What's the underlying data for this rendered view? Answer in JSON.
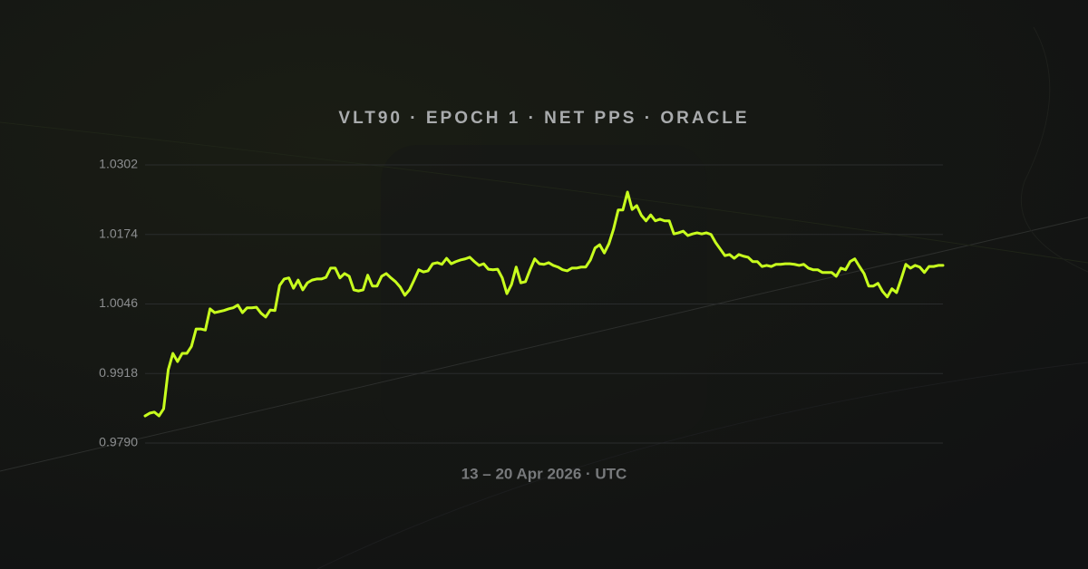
{
  "chart_data": {
    "type": "line",
    "title": "VLT90 · EPOCH 1 · NET PPS · ORACLE",
    "x_label": "13 – 20 Apr 2026 · UTC",
    "color": "#c8ff1e",
    "grid": true,
    "ylim": [
      0.979,
      1.0302
    ],
    "yticks": [
      {
        "value": 0.979,
        "label": "0.9790"
      },
      0.9918,
      1.0046,
      1.0174,
      1.0302
    ],
    "values": [
      0.984,
      0.9845,
      0.9847,
      0.984,
      0.9853,
      0.9925,
      0.9955,
      0.994,
      0.9955,
      0.9955,
      0.9968,
      1.0,
      1.0,
      0.9998,
      1.0037,
      1.003,
      1.0032,
      1.0034,
      1.0037,
      1.0039,
      1.0044,
      1.003,
      1.0039,
      1.0039,
      1.004,
      1.0029,
      1.0022,
      1.0035,
      1.0034,
      1.008,
      1.0092,
      1.0094,
      1.0075,
      1.009,
      1.0072,
      1.0085,
      1.009,
      1.0092,
      1.0092,
      1.0095,
      1.0112,
      1.0112,
      1.0094,
      1.0102,
      1.0097,
      1.0072,
      1.007,
      1.0072,
      1.0099,
      1.0079,
      1.0079,
      1.0097,
      1.0102,
      1.0094,
      1.0087,
      1.0077,
      1.0062,
      1.0072,
      1.009,
      1.0109,
      1.0105,
      1.0107,
      1.012,
      1.0122,
      1.0119,
      1.013,
      1.012,
      1.0124,
      1.0127,
      1.0129,
      1.0132,
      1.0124,
      1.0117,
      1.012,
      1.011,
      1.0109,
      1.011,
      1.0094,
      1.0065,
      1.0082,
      1.0114,
      1.0085,
      1.0087,
      1.0109,
      1.0129,
      1.012,
      1.0119,
      1.0122,
      1.0117,
      1.0114,
      1.0109,
      1.0107,
      1.0112,
      1.0112,
      1.0114,
      1.0114,
      1.0127,
      1.0149,
      1.0155,
      1.014,
      1.0157,
      1.0184,
      1.0219,
      1.0219,
      1.0252,
      1.022,
      1.0227,
      1.0209,
      1.0199,
      1.021,
      1.0199,
      1.0202,
      1.0199,
      1.0199,
      1.0175,
      1.0177,
      1.018,
      1.0172,
      1.0175,
      1.0177,
      1.0175,
      1.0177,
      1.0174,
      1.0159,
      1.0147,
      1.0135,
      1.0137,
      1.013,
      1.0137,
      1.0134,
      1.0132,
      1.0124,
      1.0124,
      1.0115,
      1.0117,
      1.0115,
      1.0119,
      1.0119,
      1.012,
      1.012,
      1.0119,
      1.0117,
      1.0119,
      1.0112,
      1.0109,
      1.0109,
      1.0104,
      1.0104,
      1.0104,
      1.0097,
      1.0112,
      1.0109,
      1.0124,
      1.0129,
      1.0115,
      1.0102,
      1.0079,
      1.0079,
      1.0084,
      1.0069,
      1.0059,
      1.0074,
      1.0067,
      1.0092,
      1.0119,
      1.0112,
      1.0117,
      1.0114,
      1.0104,
      1.0115,
      1.0115,
      1.0117,
      1.0117
    ]
  }
}
